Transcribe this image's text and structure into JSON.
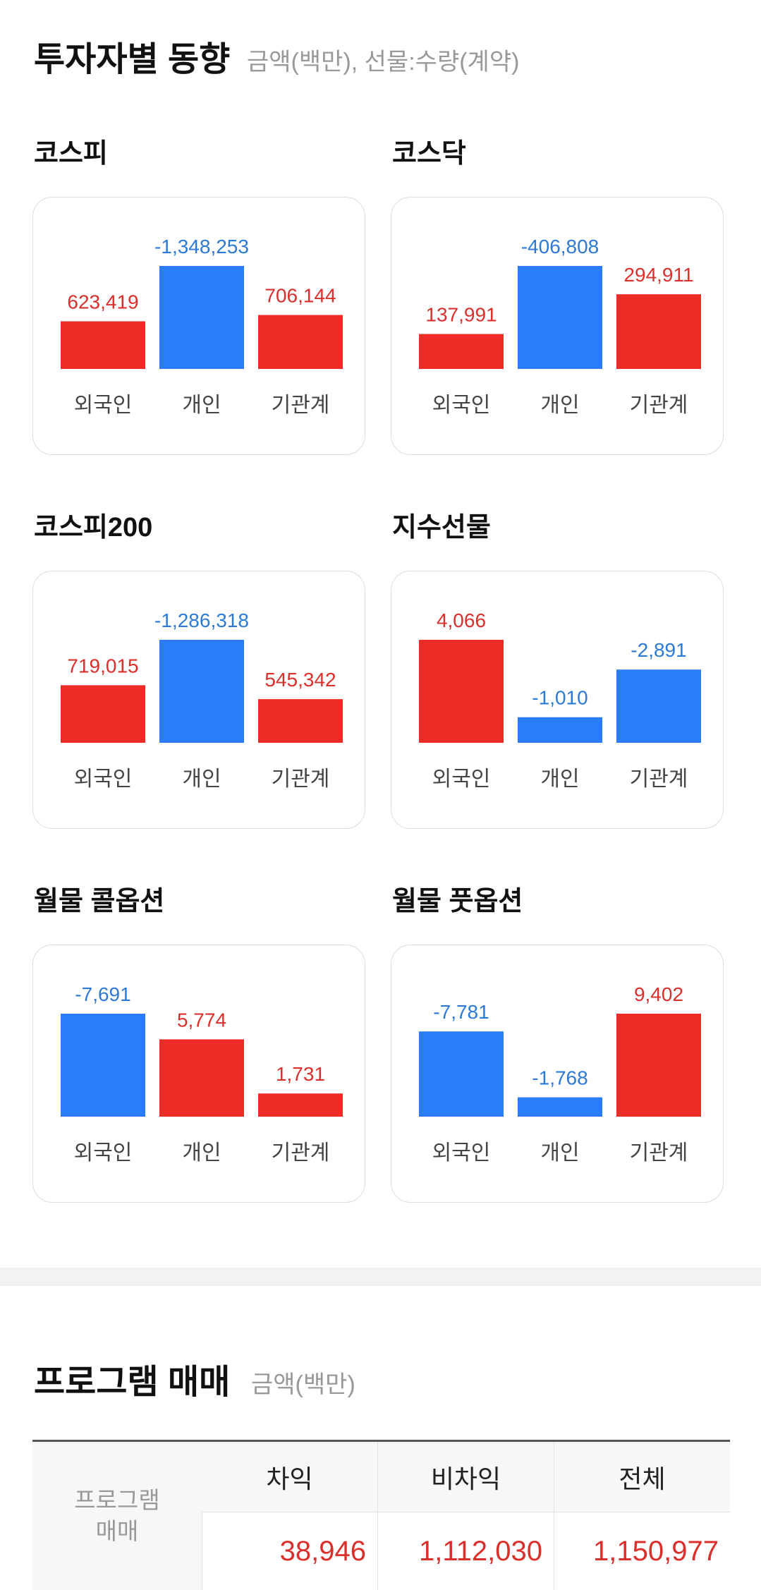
{
  "investor_trends": {
    "title": "투자자별 동향",
    "subtitle": "금액(백만), 선물:수량(계약)"
  },
  "colors": {
    "positive": "#ee2b27",
    "negative": "#2a7cf8",
    "positive_text": "#d9302c",
    "negative_text": "#2c7ad8"
  },
  "chart_data": [
    {
      "type": "bar",
      "title": "코스피",
      "categories": [
        "외국인",
        "개인",
        "기관계"
      ],
      "values": [
        623419,
        -1348253,
        706144
      ],
      "labels": [
        "623,419",
        "-1,348,253",
        "706,144"
      ]
    },
    {
      "type": "bar",
      "title": "코스닥",
      "categories": [
        "외국인",
        "개인",
        "기관계"
      ],
      "values": [
        137991,
        -406808,
        294911
      ],
      "labels": [
        "137,991",
        "-406,808",
        "294,911"
      ]
    },
    {
      "type": "bar",
      "title": "코스피200",
      "categories": [
        "외국인",
        "개인",
        "기관계"
      ],
      "values": [
        719015,
        -1286318,
        545342
      ],
      "labels": [
        "719,015",
        "-1,286,318",
        "545,342"
      ]
    },
    {
      "type": "bar",
      "title": "지수선물",
      "categories": [
        "외국인",
        "개인",
        "기관계"
      ],
      "values": [
        4066,
        -1010,
        -2891
      ],
      "labels": [
        "4,066",
        "-1,010",
        "-2,891"
      ]
    },
    {
      "type": "bar",
      "title": "월물 콜옵션",
      "categories": [
        "외국인",
        "개인",
        "기관계"
      ],
      "values": [
        -7691,
        5774,
        1731
      ],
      "labels": [
        "-7,691",
        "5,774",
        "1,731"
      ]
    },
    {
      "type": "bar",
      "title": "월물 풋옵션",
      "categories": [
        "외국인",
        "개인",
        "기관계"
      ],
      "values": [
        -7781,
        -1768,
        9402
      ],
      "labels": [
        "-7,781",
        "-1,768",
        "9,402"
      ]
    }
  ],
  "program_trading": {
    "title": "프로그램 매매",
    "subtitle": "금액(백만)",
    "row_label_1": "프로그램",
    "row_label_2": "매매",
    "headers": [
      "차익",
      "비차익",
      "전체"
    ],
    "values": [
      "38,946",
      "1,112,030",
      "1,150,977"
    ]
  }
}
